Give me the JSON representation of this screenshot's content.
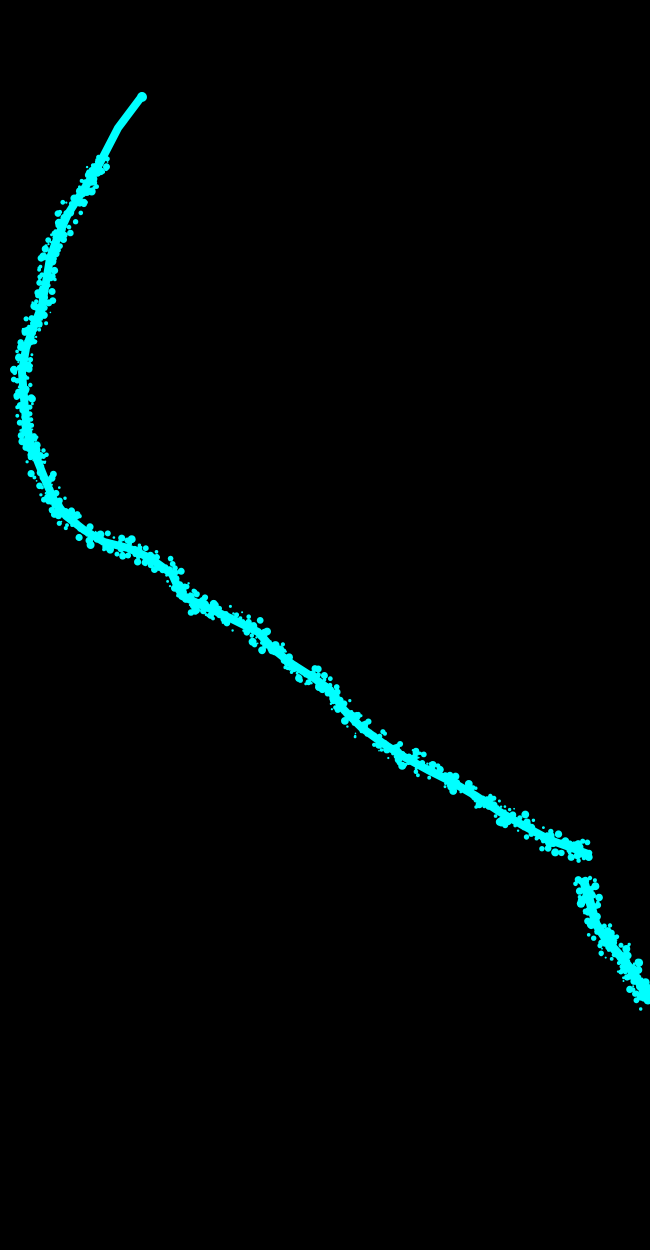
{
  "scene": {
    "background_color": "#000000",
    "trace_color": "#00FFFF",
    "subject": "cyan-trace-on-black"
  }
}
